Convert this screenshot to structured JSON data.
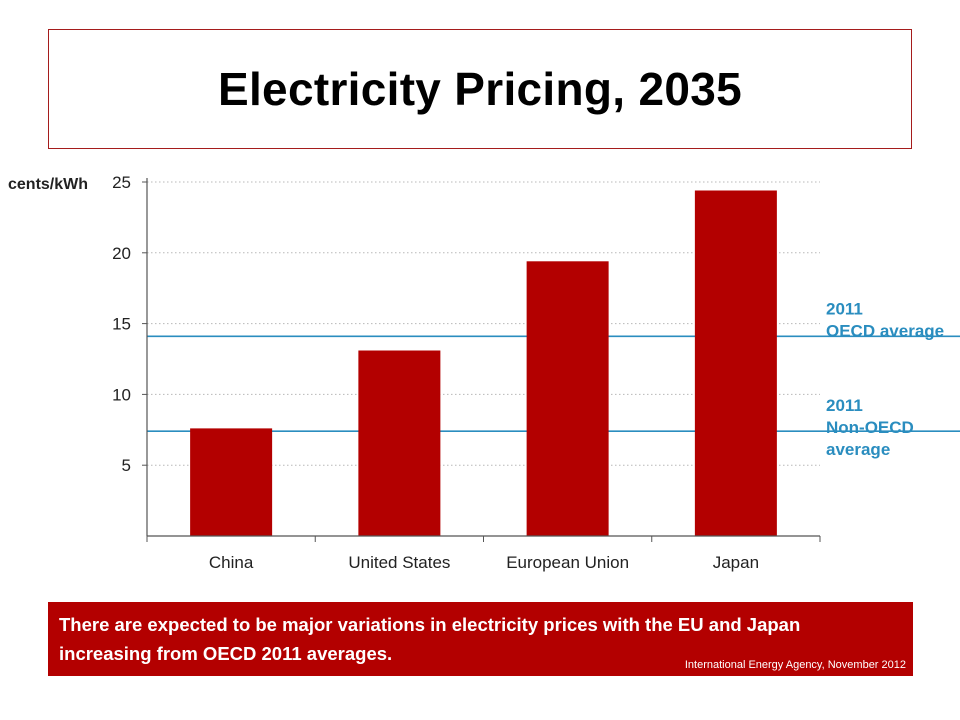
{
  "title": "Electricity Pricing, 2035",
  "chart_data": {
    "type": "bar",
    "ylabel": "cents/kWh",
    "xlabel": "",
    "categories": [
      "China",
      "United States",
      "European Union",
      "Japan"
    ],
    "values": [
      7.6,
      13.1,
      19.4,
      24.4
    ],
    "ylim": [
      0,
      25
    ],
    "yticks": [
      5,
      10,
      15,
      20,
      25
    ],
    "grid": true,
    "bar_color": "#b30000",
    "reference_lines": [
      {
        "label_line1": "2011",
        "label_line2": "OECD average",
        "label_line3": "",
        "value": 14.1
      },
      {
        "label_line1": "2011",
        "label_line2": "Non-OECD",
        "label_line3": "average",
        "value": 7.4
      }
    ],
    "reference_color": "#2a8dbf"
  },
  "caption": {
    "text": "There are expected to be major variations in electricity prices with the EU and Japan increasing from OECD 2011 averages.",
    "source": "International Energy Agency, November 2012",
    "background": "#b30000"
  }
}
